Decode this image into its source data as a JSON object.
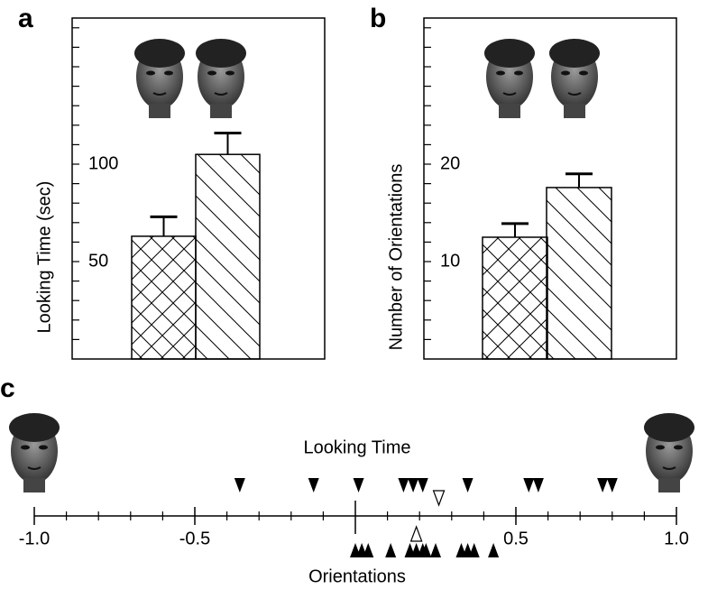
{
  "chart_data": [
    {
      "type": "bar",
      "panel_label": "a",
      "ylabel": "Looking Time (sec)",
      "categories": [
        null,
        null
      ],
      "values": [
        63,
        105
      ],
      "errors": [
        10,
        11
      ],
      "ylim": [
        0,
        175
      ],
      "yticks": [
        50,
        100
      ],
      "minor_yticks": [
        10,
        20,
        30,
        40,
        60,
        70,
        80,
        90,
        110,
        120,
        130,
        140,
        150,
        160,
        170
      ]
    },
    {
      "type": "bar",
      "panel_label": "b",
      "ylabel": "Number of Orientations",
      "categories": [
        null,
        null
      ],
      "values": [
        12.5,
        17.6
      ],
      "errors": [
        1.4,
        1.4
      ],
      "ylim": [
        0,
        35
      ],
      "yticks": [
        10,
        20
      ],
      "minor_yticks": [
        2,
        4,
        6,
        8,
        12,
        14,
        16,
        18,
        22,
        24,
        26,
        28,
        30,
        32,
        34
      ]
    },
    {
      "type": "dot",
      "panel_label": "c",
      "xlim": [
        -1.0,
        1.0
      ],
      "xticks": [
        {
          "value": -1,
          "label": "-1.0"
        },
        {
          "value": -0.5,
          "label": "-0.5"
        },
        {
          "value": 0.5,
          "label": "0.5"
        },
        {
          "value": 1,
          "label": "1.0"
        }
      ],
      "minor_xticks": [
        -0.9,
        -0.8,
        -0.7,
        -0.6,
        -0.4,
        -0.3,
        -0.2,
        -0.1,
        0.1,
        0.2,
        0.3,
        0.4,
        0.6,
        0.7,
        0.8,
        0.9
      ],
      "series": [
        {
          "name": "Looking Time",
          "values": [
            -0.36,
            -0.13,
            0.01,
            0.15,
            0.18,
            0.21,
            0.35,
            0.54,
            0.57,
            0.77,
            0.8
          ],
          "mean": 0.26
        },
        {
          "name": "Orientations",
          "values": [
            0.0,
            0.02,
            0.04,
            0.11,
            0.17,
            0.19,
            0.21,
            0.22,
            0.25,
            0.33,
            0.35,
            0.37,
            0.43
          ],
          "mean": 0.19
        }
      ]
    }
  ]
}
